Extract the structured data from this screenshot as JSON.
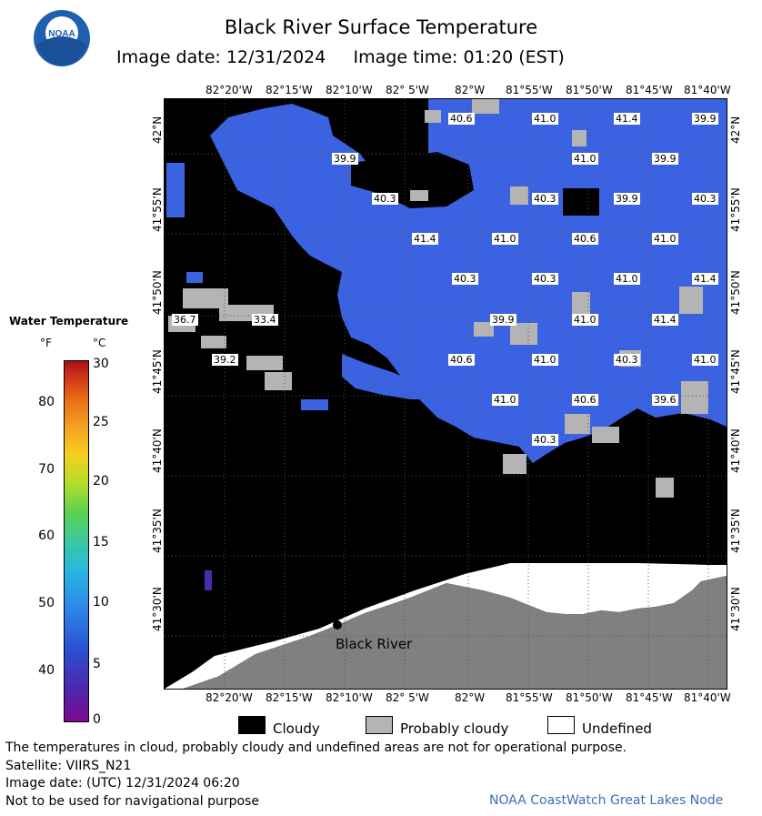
{
  "header": {
    "title": "Black River Surface Temperature",
    "subtitle": "Image date: 12/31/2024     Image time: 01:20 (EST)",
    "logo_text": "NOAA"
  },
  "axes": {
    "lon_labels": [
      "82°20'W",
      "82°15'W",
      "82°10'W",
      "82° 5'W",
      "82°W",
      "81°55'W",
      "81°50'W",
      "81°45'W",
      "81°40'W"
    ],
    "lat_labels": [
      "42°N",
      "41°55'N",
      "41°50'N",
      "41°45'N",
      "41°40'N",
      "41°35'N",
      "41°30'N"
    ]
  },
  "map": {
    "place_label": "Black River",
    "temp_labels": [
      "40.6",
      "41.0",
      "41.4",
      "39.9",
      "39.9",
      "41.0",
      "39.9",
      "40.3",
      "40.3",
      "39.9",
      "40.3",
      "41.4",
      "41.0",
      "40.6",
      "41.0",
      "40.3",
      "40.3",
      "41.0",
      "41.4",
      "36.7",
      "33.4",
      "39.9",
      "41.0",
      "41.4",
      "39.2",
      "40.6",
      "41.0",
      "40.3",
      "41.0",
      "41.0",
      "40.6",
      "39.6",
      "40.3"
    ],
    "colors": {
      "water": "#3b62e0",
      "cloud": "#000000",
      "probably_cloudy": "#b4b4b4",
      "undefined": "#ffffff",
      "land": "#808080"
    }
  },
  "colorbar": {
    "title": "Water Temperature",
    "unit_f": "°F",
    "unit_c": "°C",
    "f_ticks": [
      "80",
      "70",
      "60",
      "50",
      "40"
    ],
    "c_ticks": [
      "30",
      "25",
      "20",
      "15",
      "10",
      "5",
      "0"
    ]
  },
  "legend": {
    "cloud": "Cloudy",
    "probably_cloudy": "Probably cloudy",
    "undefined": "Undefined"
  },
  "footer": {
    "line1": "The temperatures in cloud, probably cloudy and undefined areas are not for operational purpose.",
    "line2": "Satellite: VIIRS_N21",
    "line3": "Image date: (UTC) 12/31/2024  06:20",
    "line4": "Not to be used for navigational purpose",
    "credit": "NOAA CoastWatch Great Lakes Node"
  }
}
